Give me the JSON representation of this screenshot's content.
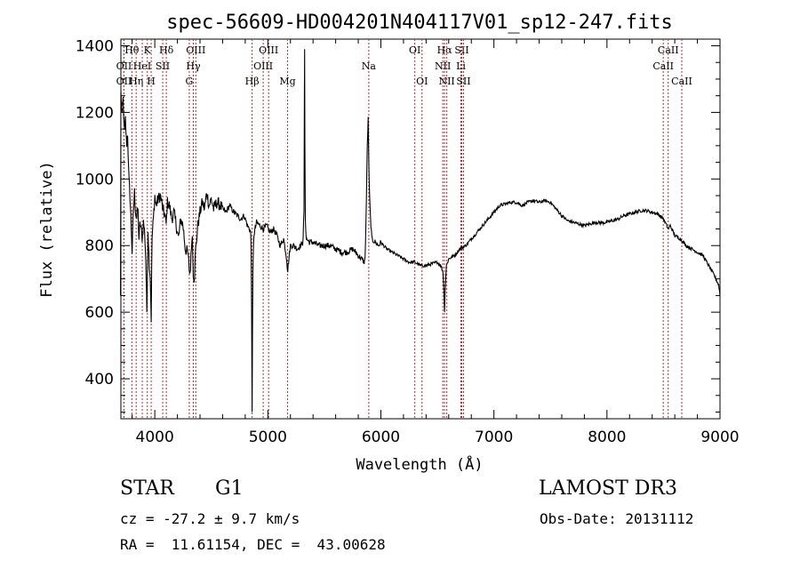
{
  "chart_data": {
    "type": "line",
    "title": "spec-56609-HD004201N404117V01_sp12-247.fits",
    "xlabel": "Wavelength (Å)",
    "ylabel": "Flux (relative)",
    "xlim": [
      3700,
      9000
    ],
    "ylim": [
      280,
      1420
    ],
    "x_ticks": [
      4000,
      5000,
      6000,
      7000,
      8000,
      9000
    ],
    "y_ticks": [
      400,
      600,
      800,
      1000,
      1200,
      1400
    ],
    "grid": false,
    "series": [
      {
        "color": "#000000",
        "points": [
          [
            3700,
            1260
          ],
          [
            3710,
            1200
          ],
          [
            3720,
            1240
          ],
          [
            3730,
            1130
          ],
          [
            3740,
            1180
          ],
          [
            3750,
            1100
          ],
          [
            3760,
            1140
          ],
          [
            3770,
            1000
          ],
          [
            3780,
            950
          ],
          [
            3790,
            870
          ],
          [
            3800,
            780
          ],
          [
            3810,
            900
          ],
          [
            3820,
            960
          ],
          [
            3830,
            900
          ],
          [
            3840,
            880
          ],
          [
            3850,
            920
          ],
          [
            3860,
            820
          ],
          [
            3870,
            870
          ],
          [
            3890,
            820
          ],
          [
            3900,
            870
          ],
          [
            3910,
            840
          ],
          [
            3920,
            760
          ],
          [
            3930,
            600
          ],
          [
            3940,
            850
          ],
          [
            3950,
            760
          ],
          [
            3960,
            700
          ],
          [
            3968,
            580
          ],
          [
            3975,
            820
          ],
          [
            3990,
            890
          ],
          [
            4000,
            950
          ],
          [
            4010,
            920
          ],
          [
            4030,
            940
          ],
          [
            4050,
            950
          ],
          [
            4070,
            910
          ],
          [
            4090,
            890
          ],
          [
            4101,
            860
          ],
          [
            4110,
            930
          ],
          [
            4130,
            920
          ],
          [
            4150,
            880
          ],
          [
            4170,
            900
          ],
          [
            4190,
            860
          ],
          [
            4210,
            820
          ],
          [
            4230,
            880
          ],
          [
            4250,
            860
          ],
          [
            4270,
            790
          ],
          [
            4290,
            780
          ],
          [
            4300,
            750
          ],
          [
            4310,
            710
          ],
          [
            4320,
            760
          ],
          [
            4330,
            850
          ],
          [
            4340,
            720
          ],
          [
            4350,
            700
          ],
          [
            4360,
            780
          ],
          [
            4380,
            860
          ],
          [
            4400,
            900
          ],
          [
            4420,
            930
          ],
          [
            4440,
            910
          ],
          [
            4460,
            960
          ],
          [
            4480,
            920
          ],
          [
            4500,
            940
          ],
          [
            4520,
            910
          ],
          [
            4550,
            930
          ],
          [
            4580,
            920
          ],
          [
            4600,
            910
          ],
          [
            4630,
            900
          ],
          [
            4660,
            920
          ],
          [
            4700,
            900
          ],
          [
            4730,
            890
          ],
          [
            4760,
            880
          ],
          [
            4790,
            890
          ],
          [
            4820,
            860
          ],
          [
            4850,
            840
          ],
          [
            4855,
            700
          ],
          [
            4861,
            300
          ],
          [
            4867,
            700
          ],
          [
            4875,
            830
          ],
          [
            4900,
            870
          ],
          [
            4930,
            860
          ],
          [
            4960,
            850
          ],
          [
            4990,
            860
          ],
          [
            5020,
            840
          ],
          [
            5050,
            850
          ],
          [
            5080,
            830
          ],
          [
            5110,
            800
          ],
          [
            5140,
            820
          ],
          [
            5167,
            760
          ],
          [
            5175,
            720
          ],
          [
            5183,
            750
          ],
          [
            5200,
            800
          ],
          [
            5230,
            800
          ],
          [
            5260,
            790
          ],
          [
            5290,
            800
          ],
          [
            5310,
            810
          ],
          [
            5320,
            900
          ],
          [
            5325,
            1390
          ],
          [
            5330,
            900
          ],
          [
            5340,
            820
          ],
          [
            5370,
            810
          ],
          [
            5400,
            810
          ],
          [
            5450,
            800
          ],
          [
            5500,
            800
          ],
          [
            5550,
            800
          ],
          [
            5600,
            790
          ],
          [
            5650,
            780
          ],
          [
            5700,
            780
          ],
          [
            5750,
            790
          ],
          [
            5800,
            770
          ],
          [
            5830,
            760
          ],
          [
            5850,
            750
          ],
          [
            5860,
            760
          ],
          [
            5870,
            900
          ],
          [
            5880,
            1100
          ],
          [
            5888,
            1180
          ],
          [
            5895,
            1000
          ],
          [
            5905,
            900
          ],
          [
            5920,
            820
          ],
          [
            5950,
            810
          ],
          [
            5980,
            800
          ],
          [
            6000,
            810
          ],
          [
            6050,
            790
          ],
          [
            6100,
            780
          ],
          [
            6150,
            770
          ],
          [
            6200,
            760
          ],
          [
            6250,
            750
          ],
          [
            6300,
            750
          ],
          [
            6350,
            740
          ],
          [
            6400,
            740
          ],
          [
            6450,
            745
          ],
          [
            6500,
            750
          ],
          [
            6530,
            740
          ],
          [
            6550,
            720
          ],
          [
            6558,
            660
          ],
          [
            6563,
            600
          ],
          [
            6568,
            660
          ],
          [
            6580,
            740
          ],
          [
            6600,
            760
          ],
          [
            6650,
            770
          ],
          [
            6700,
            790
          ],
          [
            6750,
            800
          ],
          [
            6800,
            820
          ],
          [
            6850,
            840
          ],
          [
            6900,
            860
          ],
          [
            6950,
            880
          ],
          [
            7000,
            900
          ],
          [
            7050,
            920
          ],
          [
            7100,
            925
          ],
          [
            7150,
            930
          ],
          [
            7200,
            930
          ],
          [
            7250,
            920
          ],
          [
            7300,
            930
          ],
          [
            7350,
            935
          ],
          [
            7400,
            930
          ],
          [
            7450,
            935
          ],
          [
            7500,
            930
          ],
          [
            7550,
            910
          ],
          [
            7600,
            890
          ],
          [
            7650,
            875
          ],
          [
            7700,
            870
          ],
          [
            7750,
            865
          ],
          [
            7800,
            860
          ],
          [
            7850,
            865
          ],
          [
            7900,
            870
          ],
          [
            7950,
            868
          ],
          [
            8000,
            870
          ],
          [
            8050,
            875
          ],
          [
            8100,
            880
          ],
          [
            8150,
            890
          ],
          [
            8200,
            895
          ],
          [
            8250,
            900
          ],
          [
            8300,
            905
          ],
          [
            8350,
            905
          ],
          [
            8400,
            900
          ],
          [
            8450,
            895
          ],
          [
            8500,
            880
          ],
          [
            8542,
            850
          ],
          [
            8560,
            860
          ],
          [
            8600,
            830
          ],
          [
            8650,
            820
          ],
          [
            8700,
            800
          ],
          [
            8750,
            790
          ],
          [
            8800,
            780
          ],
          [
            8850,
            770
          ],
          [
            8900,
            740
          ],
          [
            8950,
            710
          ],
          [
            8990,
            680
          ],
          [
            9000,
            650
          ]
        ]
      }
    ],
    "line_markers": [
      {
        "label": "Hθ",
        "x": 3797,
        "row": 0,
        "color": "#b03030"
      },
      {
        "label": "OII",
        "x": 3727,
        "row": 1,
        "color": "#b03030"
      },
      {
        "label": "OII",
        "x": 3727,
        "row": 2,
        "color": "#b03030"
      },
      {
        "label": "HeI",
        "x": 3889,
        "row": 1,
        "color": "#b03030"
      },
      {
        "label": "Hη",
        "x": 3835,
        "row": 2,
        "color": "#b03030"
      },
      {
        "label": "K",
        "x": 3934,
        "row": 0,
        "color": "#b03030"
      },
      {
        "label": "H",
        "x": 3968,
        "row": 2,
        "color": "#b03030"
      },
      {
        "label": "SII",
        "x": 4070,
        "row": 1,
        "color": "#b03030"
      },
      {
        "label": "Hδ",
        "x": 4102,
        "row": 0,
        "color": "#b03030"
      },
      {
        "label": "OIII",
        "x": 4363,
        "row": 0,
        "color": "#b03030"
      },
      {
        "label": "Hγ",
        "x": 4341,
        "row": 1,
        "color": "#b03030"
      },
      {
        "label": "G",
        "x": 4305,
        "row": 2,
        "color": "#b03030"
      },
      {
        "label": "Hβ",
        "x": 4861,
        "row": 2,
        "color": "#b03030"
      },
      {
        "label": "OIII",
        "x": 5007,
        "row": 0,
        "color": "#b03030"
      },
      {
        "label": "OIII",
        "x": 4959,
        "row": 1,
        "color": "#b03030"
      },
      {
        "label": "Mg",
        "x": 5175,
        "row": 2,
        "color": "#b03030"
      },
      {
        "label": "Na",
        "x": 5893,
        "row": 1,
        "color": "#b03030"
      },
      {
        "label": "OI",
        "x": 6300,
        "row": 0,
        "color": "#b03030"
      },
      {
        "label": "OI",
        "x": 6364,
        "row": 2,
        "color": "#b03030"
      },
      {
        "label": "Hα",
        "x": 6563,
        "row": 0,
        "color": "#b03030"
      },
      {
        "label": "NII",
        "x": 6548,
        "row": 1,
        "color": "#b03030"
      },
      {
        "label": "NII",
        "x": 6583,
        "row": 2,
        "color": "#b03030"
      },
      {
        "label": "SII",
        "x": 6716,
        "row": 0,
        "color": "#b03030"
      },
      {
        "label": "Li",
        "x": 6708,
        "row": 1,
        "color": "#b03030"
      },
      {
        "label": "SII",
        "x": 6731,
        "row": 2,
        "color": "#b03030"
      },
      {
        "label": "CaII",
        "x": 8542,
        "row": 0,
        "color": "#b03030"
      },
      {
        "label": "CaII",
        "x": 8498,
        "row": 1,
        "color": "#b03030"
      },
      {
        "label": "CaII",
        "x": 8662,
        "row": 2,
        "color": "#b03030"
      }
    ]
  },
  "info": {
    "object_class": "STAR",
    "subclass": "G1",
    "survey": "LAMOST DR3",
    "cz": "cz = -27.2 ± 9.7 km/s",
    "obs_date": "Obs-Date: 20131112",
    "coords": "RA =  11.61154, DEC =  43.00628"
  }
}
